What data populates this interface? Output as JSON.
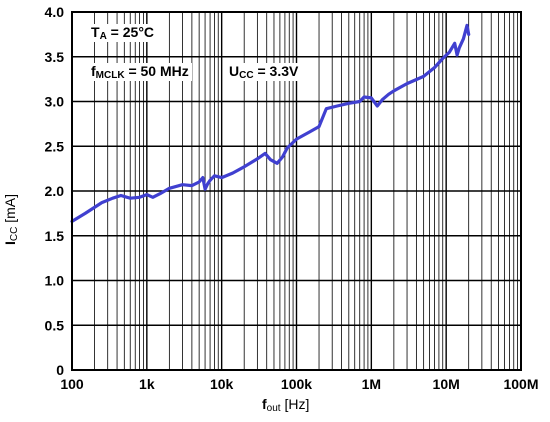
{
  "chart_data": {
    "type": "line",
    "x_scale": "log",
    "xlim": [
      100,
      100000000
    ],
    "ylim": [
      0,
      4.0
    ],
    "x_ticks": [
      100,
      1000,
      10000,
      100000,
      1000000,
      10000000,
      100000000
    ],
    "x_tick_labels": [
      "100",
      "1k",
      "10k",
      "100k",
      "1M",
      "10M",
      "100M"
    ],
    "y_ticks": [
      0,
      0.5,
      1.0,
      1.5,
      2.0,
      2.5,
      3.0,
      3.5,
      4.0
    ],
    "y_tick_labels": [
      "0",
      "0.5",
      "1.0",
      "1.5",
      "2.0",
      "2.5",
      "3.0",
      "3.5",
      "4.0"
    ],
    "grid": true,
    "xlabel": {
      "symbol": "f",
      "sub": "out",
      "unit": "[Hz]"
    },
    "ylabel": {
      "symbol": "I",
      "sub": "CC",
      "unit": "[mA]"
    },
    "annotations": {
      "ta": {
        "symbol": "T",
        "sub": "A",
        "value": " = 25°C"
      },
      "fmclk": {
        "symbol": "f",
        "sub": "MCLK",
        "value": " = 50 MHz"
      },
      "ucc": {
        "symbol": "U",
        "sub": "CC",
        "value": " = 3.3V"
      }
    },
    "series": [
      {
        "color": "#4040d0",
        "x": [
          100,
          150,
          250,
          350,
          450,
          600,
          800,
          1000,
          1200,
          1500,
          2000,
          3000,
          4000,
          5000,
          5600,
          6000,
          6500,
          7000,
          8000,
          10000,
          14000,
          20000,
          30000,
          38000,
          45000,
          55000,
          65000,
          75000,
          100000,
          150000,
          200000,
          250000,
          350000,
          500000,
          700000,
          800000,
          1000000,
          1200000,
          1400000,
          1700000,
          2000000,
          3000000,
          5000000,
          7000000,
          9000000,
          11000000,
          13000000,
          14000000,
          15000000,
          17000000,
          19000000,
          20000000
        ],
        "y": [
          1.66,
          1.75,
          1.87,
          1.92,
          1.95,
          1.92,
          1.93,
          1.96,
          1.93,
          1.97,
          2.03,
          2.07,
          2.06,
          2.1,
          2.15,
          2.02,
          2.08,
          2.12,
          2.17,
          2.15,
          2.2,
          2.27,
          2.36,
          2.42,
          2.35,
          2.31,
          2.38,
          2.48,
          2.58,
          2.66,
          2.72,
          2.92,
          2.95,
          2.98,
          3.0,
          3.05,
          3.04,
          2.95,
          3.02,
          3.08,
          3.12,
          3.2,
          3.28,
          3.38,
          3.48,
          3.55,
          3.65,
          3.52,
          3.6,
          3.7,
          3.85,
          3.75
        ]
      }
    ]
  }
}
